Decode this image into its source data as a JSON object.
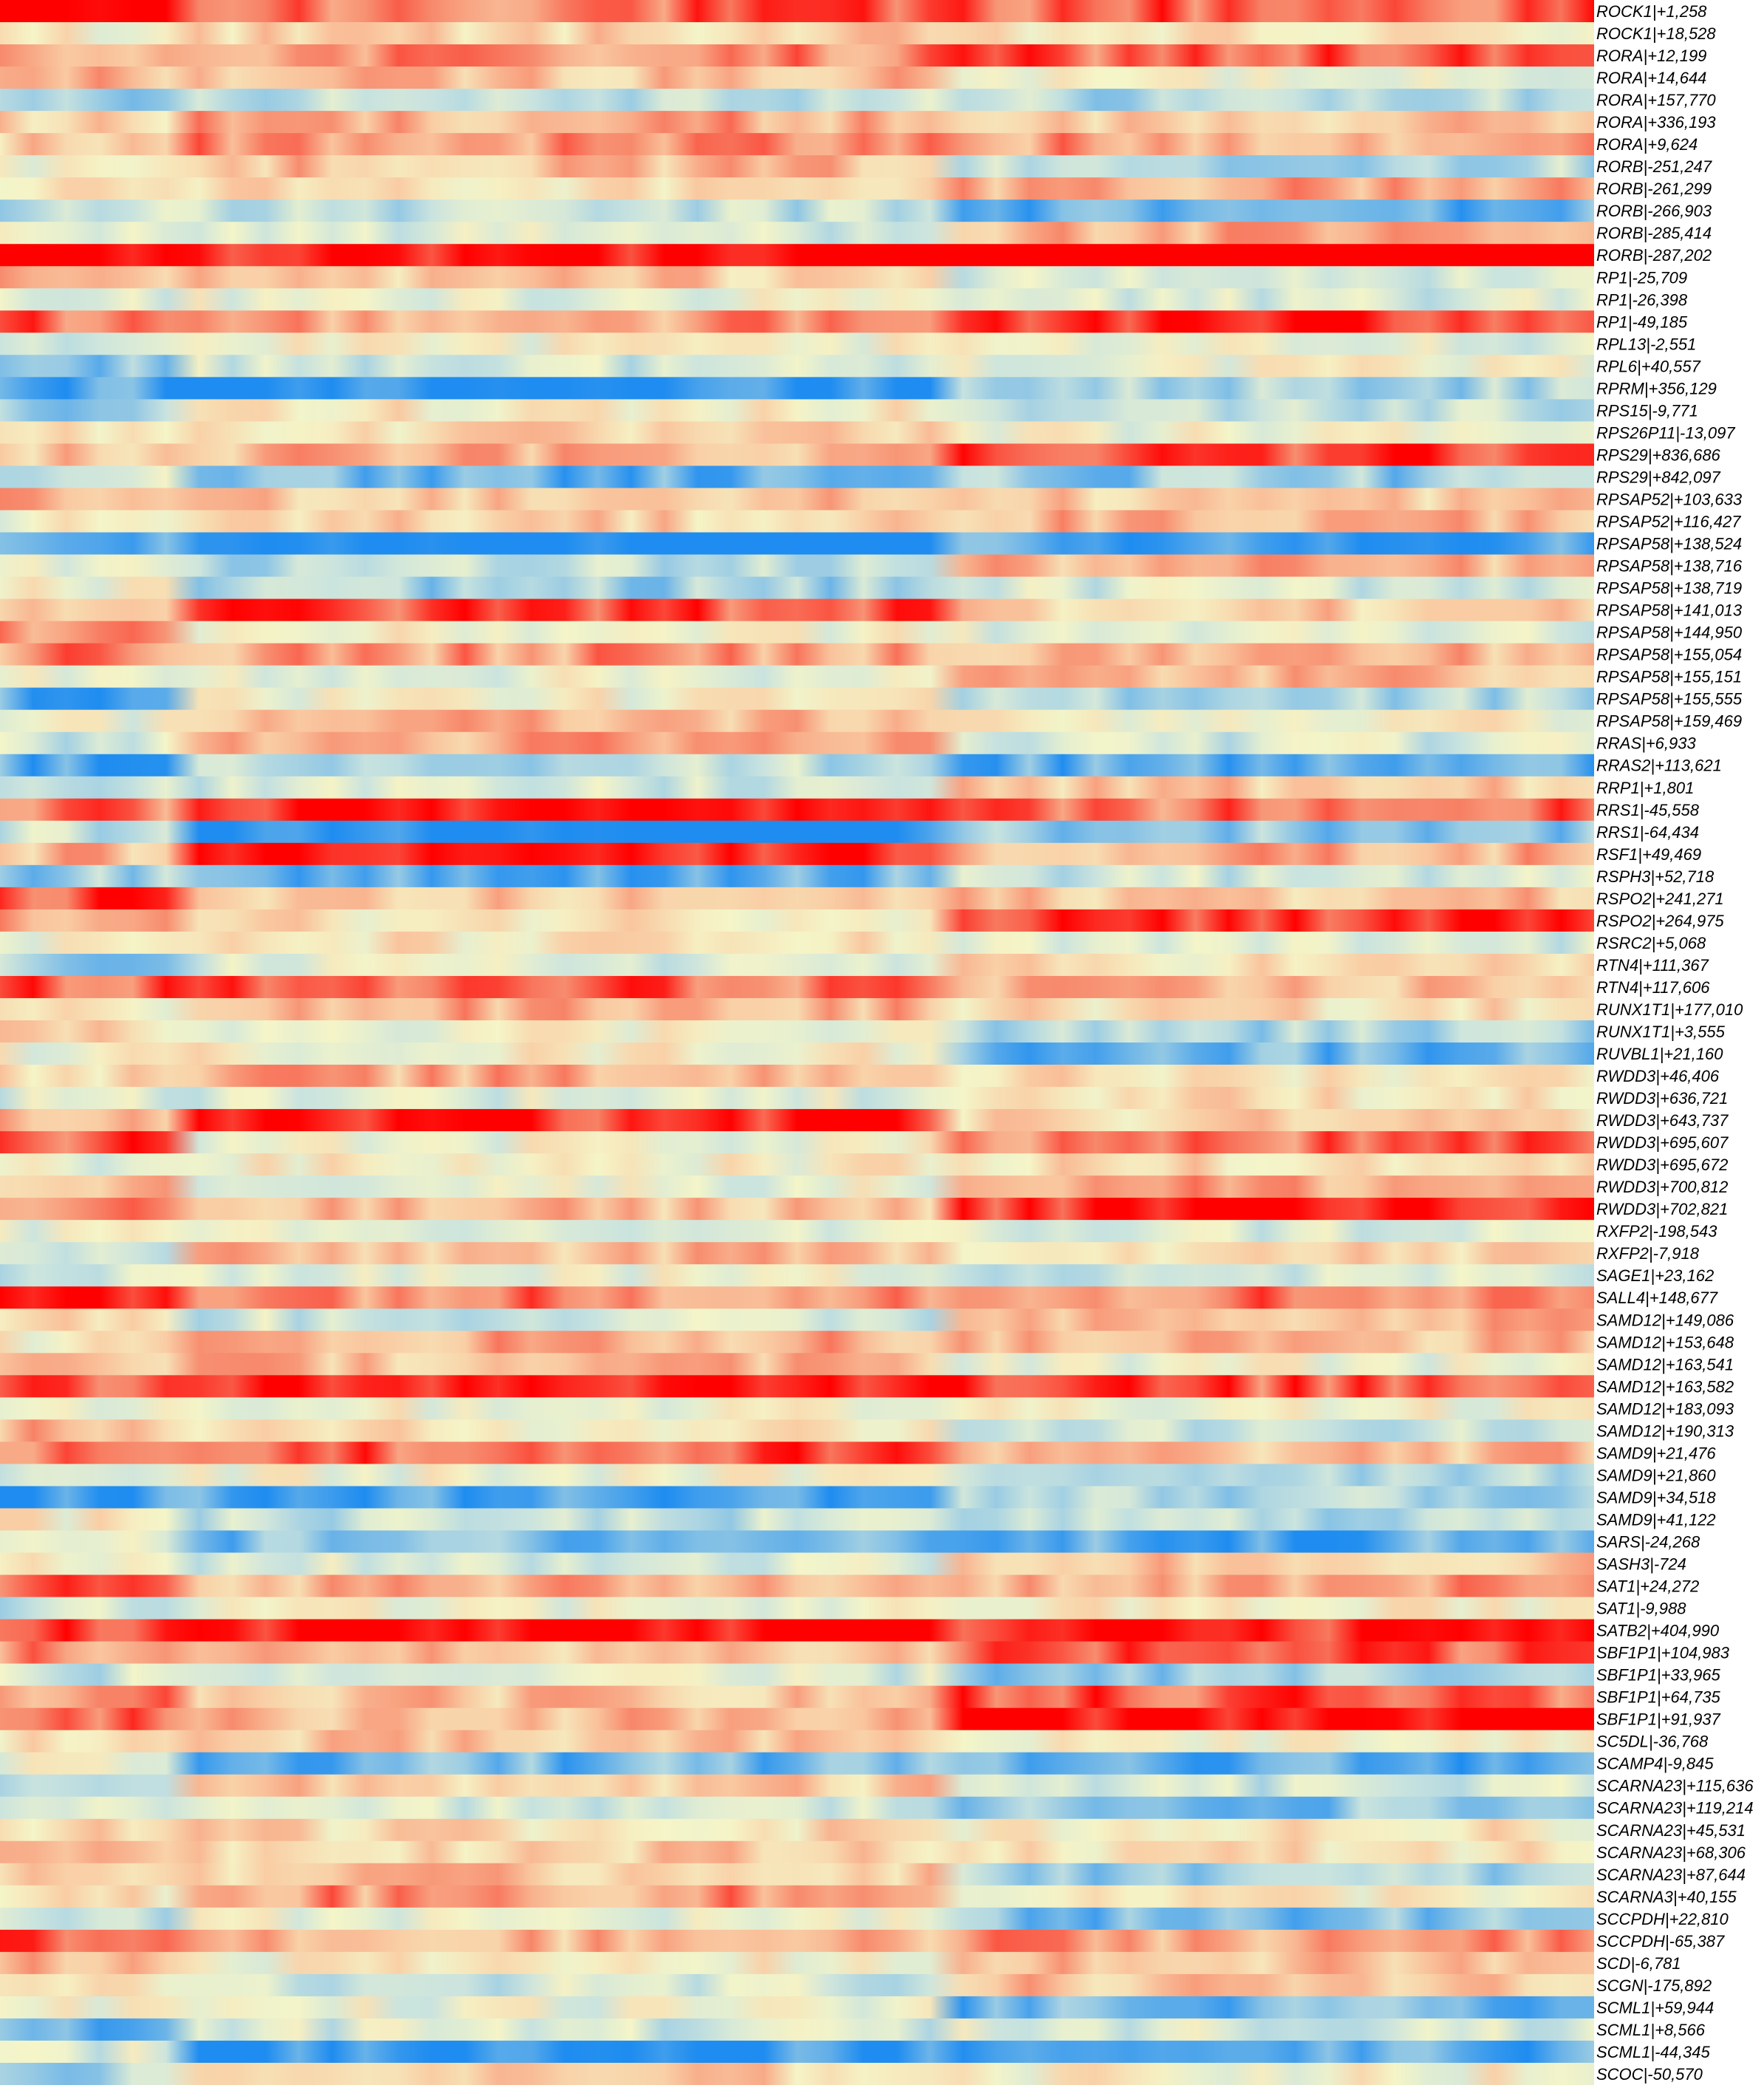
{
  "chart_data": {
    "type": "heatmap",
    "title": "",
    "xlabel": "",
    "ylabel": "",
    "legend": "none",
    "grid": false,
    "colormap": {
      "low": "#1e8cf0",
      "mid": "#f5f5c8",
      "high": "#ff0000",
      "stops": [
        "#1e8cf0",
        "#7dbde6",
        "#c9e3df",
        "#f5f5c8",
        "#f9cfa6",
        "#f7876a",
        "#ff0000"
      ]
    },
    "value_range": [
      -1,
      1
    ],
    "column_groups": [
      {
        "start": 0.0,
        "end": 0.12
      },
      {
        "start": 0.12,
        "end": 0.595
      },
      {
        "start": 0.595,
        "end": 1.0
      }
    ],
    "rows": [
      {
        "label": "ROCK1|+1,258",
        "level": 0.7
      },
      {
        "label": "ROCK1|+18,528",
        "level": 0.0
      },
      {
        "label": "RORA|+12,199",
        "level": 0.4
      },
      {
        "label": "RORA|+14,644",
        "level": 0.1
      },
      {
        "label": "RORA|+157,770",
        "level": -0.7
      },
      {
        "label": "RORA|+336,193",
        "level": 0.5
      },
      {
        "label": "RORA|+9,624",
        "level": 0.6
      },
      {
        "label": "RORB|-251,247",
        "level": 0.0
      },
      {
        "label": "RORB|-261,299",
        "level": 0.5
      },
      {
        "label": "RORB|-266,903",
        "level": -0.4
      },
      {
        "label": "RORB|-285,414",
        "level": 0.1
      },
      {
        "label": "RORB|-287,202",
        "level": 0.9
      },
      {
        "label": "RP1|-25,709",
        "level": 0.0
      },
      {
        "label": "RP1|-26,398",
        "level": 0.2
      },
      {
        "label": "RP1|-49,185",
        "level": 0.5
      },
      {
        "label": "RPL13|-2,551",
        "level": 0.1
      },
      {
        "label": "RPL6|+40,557",
        "level": -0.2
      },
      {
        "label": "RPRM|+356,129",
        "level": -0.6
      },
      {
        "label": "RPS15|-9,771",
        "level": -0.3
      },
      {
        "label": "RPS26P11|-13,097",
        "level": 0.3
      },
      {
        "label": "RPS29|+836,686",
        "level": 0.5
      },
      {
        "label": "RPS29|+842,097",
        "level": -0.3
      },
      {
        "label": "RPSAP52|+103,633",
        "level": 0.6
      },
      {
        "label": "RPSAP52|+116,427",
        "level": 0.2
      },
      {
        "label": "RPSAP58|+138,524",
        "level": -0.8
      },
      {
        "label": "RPSAP58|+138,716",
        "level": 0.0
      },
      {
        "label": "RPSAP58|+138,719",
        "level": -0.3
      },
      {
        "label": "RPSAP58|+141,013",
        "level": 0.6
      },
      {
        "label": "RPSAP58|+144,950",
        "level": 0.2
      },
      {
        "label": "RPSAP58|+155,054",
        "level": 0.6
      },
      {
        "label": "RPSAP58|+155,151",
        "level": 0.1
      },
      {
        "label": "RPSAP58|+155,555",
        "level": -0.4
      },
      {
        "label": "RPSAP58|+159,469",
        "level": 0.3
      },
      {
        "label": "RRAS|+6,933",
        "level": 0.1
      },
      {
        "label": "RRAS2|+113,621",
        "level": -0.5
      },
      {
        "label": "RRP1|+1,801",
        "level": 0.2
      },
      {
        "label": "RRS1|-45,558",
        "level": 0.6
      },
      {
        "label": "RRS1|-64,434",
        "level": -0.7
      },
      {
        "label": "RSF1|+49,469",
        "level": 0.6
      },
      {
        "label": "RSPH3|+52,718",
        "level": -0.3
      },
      {
        "label": "RSPO2|+241,271",
        "level": 0.5
      },
      {
        "label": "RSPO2|+264,975",
        "level": 0.6
      },
      {
        "label": "RSRC2|+5,068",
        "level": 0.0
      },
      {
        "label": "RTN4|+111,367",
        "level": -0.2
      },
      {
        "label": "RTN4|+117,606",
        "level": 0.7
      },
      {
        "label": "RUNX1T1|+177,010",
        "level": 0.2
      },
      {
        "label": "RUNX1T1|+3,555",
        "level": 0.0
      },
      {
        "label": "RUVBL1|+21,160",
        "level": -0.3
      },
      {
        "label": "RWDD3|+46,406",
        "level": 0.6
      },
      {
        "label": "RWDD3|+636,721",
        "level": 0.1
      },
      {
        "label": "RWDD3|+643,737",
        "level": 0.5
      },
      {
        "label": "RWDD3|+695,607",
        "level": 0.4
      },
      {
        "label": "RWDD3|+695,672",
        "level": 0.2
      },
      {
        "label": "RWDD3|+700,812",
        "level": 0.1
      },
      {
        "label": "RWDD3|+702,821",
        "level": 0.6
      },
      {
        "label": "RXFP2|-198,543",
        "level": 0.2
      },
      {
        "label": "RXFP2|-7,918",
        "level": 0.1
      },
      {
        "label": "SAGE1|+23,162",
        "level": -0.3
      },
      {
        "label": "SALL4|+148,677",
        "level": 0.7
      },
      {
        "label": "SAMD12|+149,086",
        "level": 0.1
      },
      {
        "label": "SAMD12|+153,648",
        "level": 0.5
      },
      {
        "label": "SAMD12|+163,541",
        "level": 0.3
      },
      {
        "label": "SAMD12|+163,582",
        "level": 0.6
      },
      {
        "label": "SAMD12|+183,093",
        "level": 0.3
      },
      {
        "label": "SAMD12|+190,313",
        "level": 0.1
      },
      {
        "label": "SAMD9|+21,476",
        "level": 0.5
      },
      {
        "label": "SAMD9|+21,860",
        "level": -0.3
      },
      {
        "label": "SAMD9|+34,518",
        "level": -0.6
      },
      {
        "label": "SAMD9|+41,122",
        "level": -0.2
      },
      {
        "label": "SARS|-24,268",
        "level": -0.4
      },
      {
        "label": "SASH3|-724",
        "level": 0.1
      },
      {
        "label": "SAT1|+24,272",
        "level": 0.4
      },
      {
        "label": "SAT1|-9,988",
        "level": 0.0
      },
      {
        "label": "SATB2|+404,990",
        "level": 0.8
      },
      {
        "label": "SBF1P1|+104,983",
        "level": 0.7
      },
      {
        "label": "SBF1P1|+33,965",
        "level": -0.3
      },
      {
        "label": "SBF1P1|+64,735",
        "level": 0.3
      },
      {
        "label": "SBF1P1|+91,937",
        "level": 0.7
      },
      {
        "label": "SC5DL|-36,768",
        "level": 0.1
      },
      {
        "label": "SCAMP4|-9,845",
        "level": -0.5
      },
      {
        "label": "SCARNA23|+115,636",
        "level": 0.0
      },
      {
        "label": "SCARNA23|+119,214",
        "level": -0.5
      },
      {
        "label": "SCARNA23|+45,531",
        "level": 0.3
      },
      {
        "label": "SCARNA23|+68,306",
        "level": 0.1
      },
      {
        "label": "SCARNA23|+87,644",
        "level": -0.1
      },
      {
        "label": "SCARNA3|+40,155",
        "level": 0.2
      },
      {
        "label": "SCCPDH|+22,810",
        "level": -0.5
      },
      {
        "label": "SCCPDH|-65,387",
        "level": 0.7
      },
      {
        "label": "SCD|-6,781",
        "level": 0.3
      },
      {
        "label": "SCGN|-175,892",
        "level": 0.0
      },
      {
        "label": "SCML1|+59,944",
        "level": -0.3
      },
      {
        "label": "SCML1|+8,566",
        "level": -0.6
      },
      {
        "label": "SCML1|-44,345",
        "level": -0.6
      },
      {
        "label": "SCOC|-50,570",
        "level": -0.2
      }
    ]
  }
}
